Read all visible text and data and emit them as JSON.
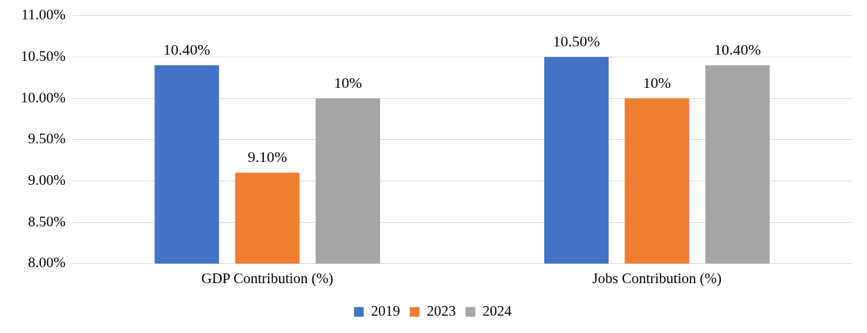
{
  "chart_data": {
    "type": "bar",
    "categories": [
      "GDP Contribution (%)",
      "Jobs Contribution (%)"
    ],
    "series": [
      {
        "name": "2019",
        "color": "#4472c4",
        "values": [
          10.4,
          10.5
        ],
        "value_labels": [
          "10.40%",
          "10.50%"
        ]
      },
      {
        "name": "2023",
        "color": "#ed7d31",
        "values": [
          9.1,
          10
        ],
        "value_labels": [
          "9.10%",
          "10%"
        ]
      },
      {
        "name": "2024",
        "color": "#a5a5a5",
        "values": [
          10,
          10.4
        ],
        "value_labels": [
          "10%",
          "10.40%"
        ]
      }
    ],
    "ylim": [
      8,
      11
    ],
    "yticks": [
      {
        "value": 8,
        "label": "8.00%"
      },
      {
        "value": 8.5,
        "label": "8.50%"
      },
      {
        "value": 9,
        "label": "9.00%"
      },
      {
        "value": 9.5,
        "label": "9.50%"
      },
      {
        "value": 10,
        "label": "10.00%"
      },
      {
        "value": 10.5,
        "label": "10.50%"
      },
      {
        "value": 11,
        "label": "11.00%"
      }
    ],
    "grid": "y",
    "legend": "bottom"
  }
}
